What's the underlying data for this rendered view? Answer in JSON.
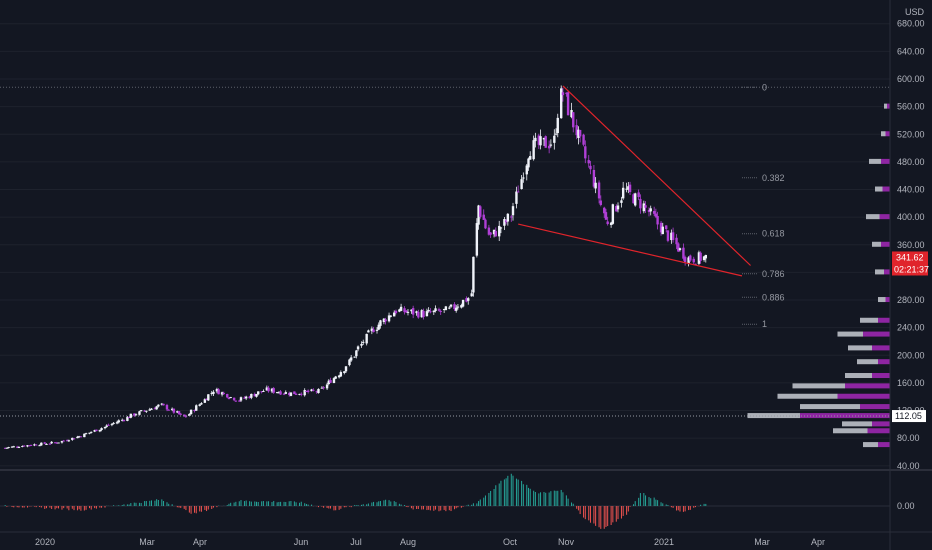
{
  "colors": {
    "background": "#131722",
    "grid": "#1e222d",
    "axis_text": "#b2b5be",
    "candle_up": "#f0f3fa",
    "candle_down": "#b03fd6",
    "wedge_line": "#e0242b",
    "fib_line": "#5d606b",
    "fib_text": "#9598a1",
    "price_badge": "#e0242b",
    "histo_pos": "#26a69a",
    "histo_neg": "#ef5350",
    "vp_grey": "#c8cbd2",
    "vp_purple": "#9c27b0"
  },
  "price_axis": {
    "currency": "USD",
    "ticks": [
      "680.00",
      "640.00",
      "600.00",
      "560.00",
      "520.00",
      "480.00",
      "440.00",
      "400.00",
      "360.00",
      "320.00",
      "280.00",
      "240.00",
      "200.00",
      "160.00",
      "120.00",
      "80.00",
      "40.00"
    ],
    "current_price": "341.62",
    "countdown": "02:21:37",
    "marked_level": "112.05"
  },
  "indicator_axis": {
    "tick": "0.00"
  },
  "time_axis": {
    "labels": [
      "2020",
      "Mar",
      "Apr",
      "Jun",
      "Jul",
      "Aug",
      "Oct",
      "Nov",
      "2021",
      "Mar",
      "Apr"
    ]
  },
  "fib_levels": [
    {
      "label": "0",
      "price": 588
    },
    {
      "label": "0.382",
      "price": 457
    },
    {
      "label": "0.618",
      "price": 376
    },
    {
      "label": "0.786",
      "price": 318
    },
    {
      "label": "0.886",
      "price": 284
    },
    {
      "label": "1",
      "price": 245
    }
  ],
  "chart_data": {
    "type": "candlestick",
    "y_scale": "linear",
    "ylim": [
      40,
      700
    ],
    "x_range": [
      "2019-11-28",
      "2021-04-28"
    ],
    "series": [
      {
        "date": "2019-12-01",
        "close": 66
      },
      {
        "date": "2019-12-15",
        "close": 70
      },
      {
        "date": "2020-01-01",
        "close": 74
      },
      {
        "date": "2020-01-15",
        "close": 84
      },
      {
        "date": "2020-02-01",
        "close": 100
      },
      {
        "date": "2020-02-15",
        "close": 115
      },
      {
        "date": "2020-03-01",
        "close": 128
      },
      {
        "date": "2020-03-15",
        "close": 110
      },
      {
        "date": "2020-04-01",
        "close": 150
      },
      {
        "date": "2020-04-15",
        "close": 135
      },
      {
        "date": "2020-05-01",
        "close": 150
      },
      {
        "date": "2020-05-15",
        "close": 145
      },
      {
        "date": "2020-06-01",
        "close": 148
      },
      {
        "date": "2020-06-15",
        "close": 180
      },
      {
        "date": "2020-07-01",
        "close": 235
      },
      {
        "date": "2020-07-15",
        "close": 265
      },
      {
        "date": "2020-08-01",
        "close": 260
      },
      {
        "date": "2020-08-15",
        "close": 265
      },
      {
        "date": "2020-08-28",
        "close": 285
      },
      {
        "date": "2020-09-01",
        "close": 420
      },
      {
        "date": "2020-09-08",
        "close": 370
      },
      {
        "date": "2020-09-20",
        "close": 400
      },
      {
        "date": "2020-10-01",
        "close": 500
      },
      {
        "date": "2020-10-15",
        "close": 510
      },
      {
        "date": "2020-10-20",
        "close": 585
      },
      {
        "date": "2020-10-28",
        "close": 525
      },
      {
        "date": "2020-11-05",
        "close": 470
      },
      {
        "date": "2020-11-15",
        "close": 390
      },
      {
        "date": "2020-11-25",
        "close": 440
      },
      {
        "date": "2020-12-05",
        "close": 420
      },
      {
        "date": "2020-12-15",
        "close": 390
      },
      {
        "date": "2020-12-25",
        "close": 360
      },
      {
        "date": "2021-01-01",
        "close": 340
      },
      {
        "date": "2021-01-12",
        "close": 341.62
      }
    ],
    "trendlines": [
      {
        "name": "upper",
        "from": {
          "date": "2020-10-20",
          "price": 590
        },
        "to": {
          "date": "2021-02-06",
          "price": 330
        }
      },
      {
        "name": "lower",
        "from": {
          "date": "2020-09-24",
          "price": 390
        },
        "to": {
          "date": "2021-02-01",
          "price": 315
        }
      }
    ],
    "oscillator": [
      {
        "date": "2019-12-01",
        "value": 0.0
      },
      {
        "date": "2020-01-15",
        "value": -0.3
      },
      {
        "date": "2020-03-01",
        "value": 0.5
      },
      {
        "date": "2020-03-20",
        "value": -0.6
      },
      {
        "date": "2020-04-15",
        "value": 0.4
      },
      {
        "date": "2020-05-20",
        "value": 0.3
      },
      {
        "date": "2020-06-10",
        "value": -0.3
      },
      {
        "date": "2020-07-10",
        "value": 0.5
      },
      {
        "date": "2020-07-25",
        "value": -0.2
      },
      {
        "date": "2020-08-15",
        "value": -0.4
      },
      {
        "date": "2020-09-01",
        "value": 0.3
      },
      {
        "date": "2020-09-20",
        "value": 2.5
      },
      {
        "date": "2020-10-05",
        "value": 1.0
      },
      {
        "date": "2020-10-20",
        "value": 1.2
      },
      {
        "date": "2020-11-01",
        "value": -0.8
      },
      {
        "date": "2020-11-12",
        "value": -1.8
      },
      {
        "date": "2020-11-25",
        "value": -0.8
      },
      {
        "date": "2020-12-05",
        "value": 1.0
      },
      {
        "date": "2020-12-15",
        "value": 0.4
      },
      {
        "date": "2020-12-28",
        "value": -0.5
      },
      {
        "date": "2021-01-12",
        "value": 0.2
      }
    ],
    "volume_profile": [
      {
        "price": 70,
        "total": 18,
        "purple": 8
      },
      {
        "price": 90,
        "total": 38,
        "purple": 15
      },
      {
        "price": 100,
        "total": 32,
        "purple": 12
      },
      {
        "price": 112,
        "total": 95,
        "purple": 60
      },
      {
        "price": 125,
        "total": 60,
        "purple": 20
      },
      {
        "price": 140,
        "total": 75,
        "purple": 35
      },
      {
        "price": 155,
        "total": 65,
        "purple": 30
      },
      {
        "price": 170,
        "total": 30,
        "purple": 12
      },
      {
        "price": 190,
        "total": 22,
        "purple": 8
      },
      {
        "price": 210,
        "total": 28,
        "purple": 12
      },
      {
        "price": 230,
        "total": 35,
        "purple": 18
      },
      {
        "price": 250,
        "total": 20,
        "purple": 8
      },
      {
        "price": 280,
        "total": 8,
        "purple": 3
      },
      {
        "price": 320,
        "total": 10,
        "purple": 4
      },
      {
        "price": 360,
        "total": 12,
        "purple": 6
      },
      {
        "price": 400,
        "total": 16,
        "purple": 7
      },
      {
        "price": 440,
        "total": 10,
        "purple": 5
      },
      {
        "price": 480,
        "total": 14,
        "purple": 6
      },
      {
        "price": 520,
        "total": 6,
        "purple": 3
      },
      {
        "price": 560,
        "total": 4,
        "purple": 2
      }
    ]
  }
}
